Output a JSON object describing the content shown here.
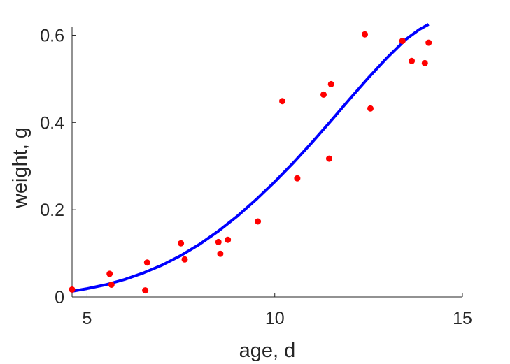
{
  "chart_data": {
    "type": "scatter",
    "xlabel": "age, d",
    "ylabel": "weight, g",
    "xlim": [
      4.6,
      15
    ],
    "ylim": [
      0,
      0.62
    ],
    "xticks": [
      5,
      10,
      15
    ],
    "yticks": [
      0,
      0.2,
      0.4,
      0.6
    ],
    "xtick_labels": [
      "5",
      "10",
      "15"
    ],
    "ytick_labels": [
      "0",
      "0.2",
      "0.4",
      "0.6"
    ],
    "grid": false,
    "series": [
      {
        "type": "scatter",
        "color": "#ff0000",
        "points": [
          [
            4.6,
            0.017
          ],
          [
            5.6,
            0.053
          ],
          [
            5.65,
            0.028
          ],
          [
            6.55,
            0.015
          ],
          [
            6.6,
            0.079
          ],
          [
            7.5,
            0.123
          ],
          [
            7.6,
            0.086
          ],
          [
            8.5,
            0.126
          ],
          [
            8.55,
            0.099
          ],
          [
            8.75,
            0.131
          ],
          [
            9.55,
            0.173
          ],
          [
            10.2,
            0.449
          ],
          [
            10.6,
            0.272
          ],
          [
            11.3,
            0.464
          ],
          [
            11.45,
            0.317
          ],
          [
            11.5,
            0.488
          ],
          [
            12.4,
            0.602
          ],
          [
            12.55,
            0.432
          ],
          [
            13.4,
            0.587
          ],
          [
            13.65,
            0.541
          ],
          [
            14.0,
            0.536
          ],
          [
            14.1,
            0.583
          ]
        ]
      },
      {
        "type": "line",
        "color": "#0000ff",
        "points": [
          [
            4.6,
            0.013
          ],
          [
            5.0,
            0.019
          ],
          [
            5.5,
            0.028
          ],
          [
            6.0,
            0.04
          ],
          [
            6.5,
            0.055
          ],
          [
            7.0,
            0.073
          ],
          [
            7.5,
            0.095
          ],
          [
            8.0,
            0.121
          ],
          [
            8.5,
            0.151
          ],
          [
            9.0,
            0.185
          ],
          [
            9.5,
            0.223
          ],
          [
            10.0,
            0.264
          ],
          [
            10.5,
            0.308
          ],
          [
            11.0,
            0.355
          ],
          [
            11.5,
            0.404
          ],
          [
            12.0,
            0.454
          ],
          [
            12.5,
            0.503
          ],
          [
            13.0,
            0.549
          ],
          [
            13.5,
            0.591
          ],
          [
            13.85,
            0.613
          ],
          [
            14.1,
            0.625
          ]
        ]
      }
    ]
  }
}
